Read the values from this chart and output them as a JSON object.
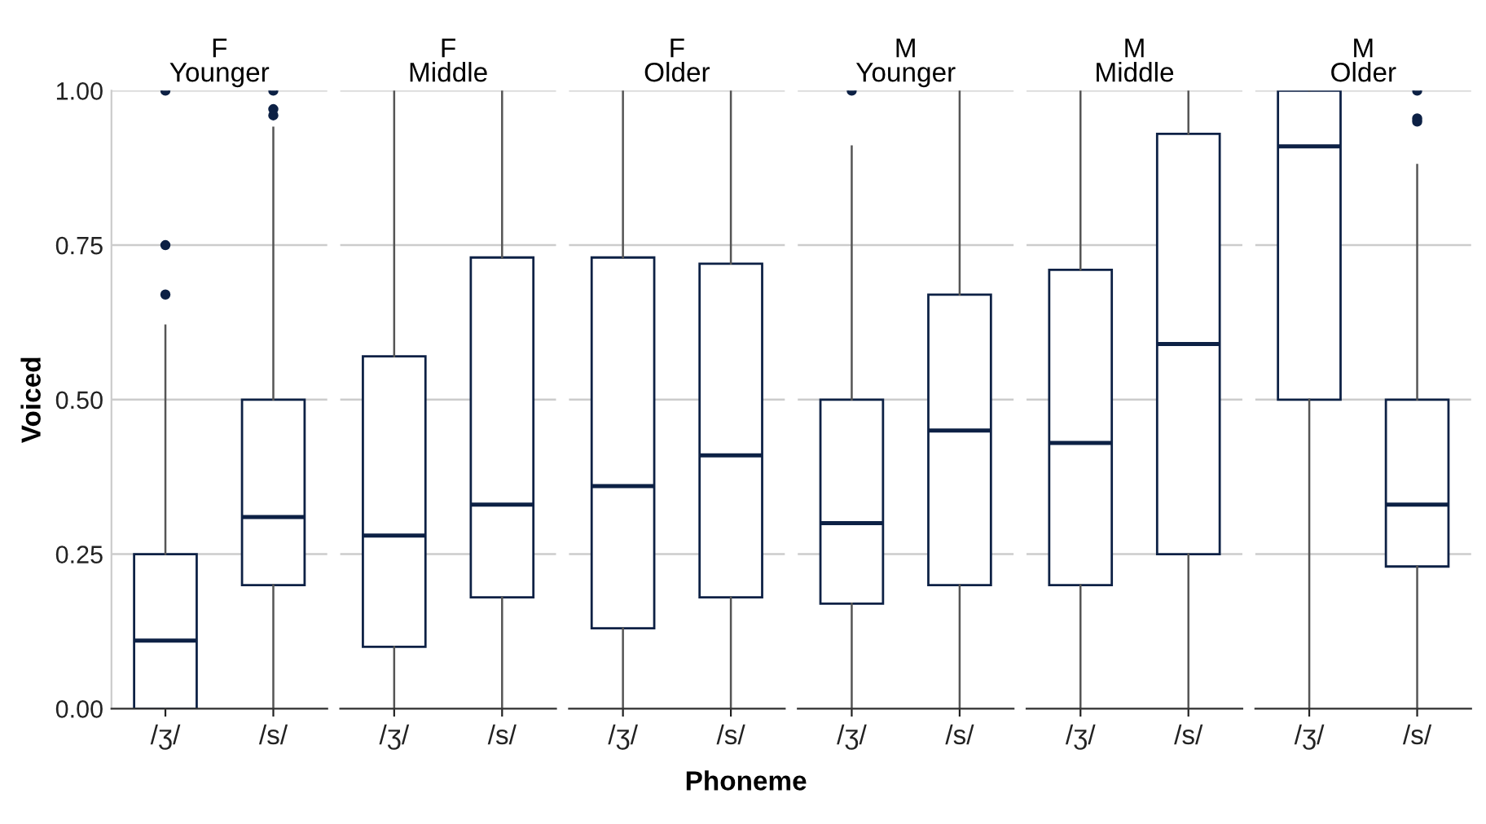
{
  "chart_data": [
    {
      "type": "box",
      "title": "F\nYounger",
      "ylabel": "Voiced",
      "categories": [
        "/ʒ/",
        "/s/"
      ],
      "color": "#0d2145",
      "ylim": [
        0,
        1
      ],
      "yticks": [
        {
          "value": 0,
          "label": "0.00"
        },
        {
          "value": 0.25,
          "label": "0.25"
        },
        {
          "value": 0.5,
          "label": "0.50"
        },
        {
          "value": 0.75,
          "label": "0.75"
        },
        {
          "value": 1,
          "label": "1.00"
        }
      ],
      "grid": "y",
      "boxes": [
        {
          "low": 0,
          "q1": 0,
          "median": 0.11,
          "q3": 0.25,
          "high": 0.62,
          "outliers": [
            0.67,
            0.75,
            1.0
          ]
        },
        {
          "low": 0,
          "q1": 0.2,
          "median": 0.31,
          "q3": 0.5,
          "high": 0.94,
          "outliers": [
            0.96,
            0.97,
            1.0
          ]
        }
      ]
    },
    {
      "type": "box",
      "title": "F\nMiddle",
      "categories": [
        "/ʒ/",
        "/s/"
      ],
      "color": "#0d2145",
      "ylim": [
        0,
        1
      ],
      "yticks": [
        0,
        0.25,
        0.5,
        0.75,
        1
      ],
      "grid": "y",
      "tick_labels": "x",
      "boxes": [
        {
          "low": 0,
          "q1": 0.1,
          "median": 0.28,
          "q3": 0.57,
          "high": 1.0
        },
        {
          "low": 0,
          "q1": 0.18,
          "median": 0.33,
          "q3": 0.73,
          "high": 1.0
        }
      ]
    },
    {
      "type": "box",
      "title": "F\nOlder",
      "xlabel": "Phoneme",
      "categories": [
        "/ʒ/",
        "/s/"
      ],
      "color": "#0d2145",
      "ylim": [
        0,
        1
      ],
      "yticks": [
        0,
        0.25,
        0.5,
        0.75,
        1
      ],
      "grid": "y",
      "tick_labels": "x",
      "boxes": [
        {
          "low": 0,
          "q1": 0.13,
          "median": 0.36,
          "q3": 0.73,
          "high": 1.0
        },
        {
          "low": 0,
          "q1": 0.18,
          "median": 0.41,
          "q3": 0.72,
          "high": 1.0
        }
      ]
    },
    {
      "type": "box",
      "title": "M\nYounger",
      "categories": [
        "/ʒ/",
        "/s/"
      ],
      "color": "#0d2145",
      "ylim": [
        0,
        1
      ],
      "yticks": [
        0,
        0.25,
        0.5,
        0.75,
        1
      ],
      "grid": "y",
      "tick_labels": "x",
      "boxes": [
        {
          "low": 0,
          "q1": 0.17,
          "median": 0.3,
          "q3": 0.5,
          "high": 0.91,
          "outliers": [
            1.0
          ]
        },
        {
          "low": 0,
          "q1": 0.2,
          "median": 0.45,
          "q3": 0.67,
          "high": 1.0
        }
      ]
    },
    {
      "type": "box",
      "title": "M\nMiddle",
      "categories": [
        "/ʒ/",
        "/s/"
      ],
      "color": "#0d2145",
      "ylim": [
        0,
        1
      ],
      "yticks": [
        0,
        0.25,
        0.5,
        0.75,
        1
      ],
      "grid": "y",
      "tick_labels": "x",
      "boxes": [
        {
          "low": 0,
          "q1": 0.2,
          "median": 0.43,
          "q3": 0.71,
          "high": 1.0
        },
        {
          "low": 0,
          "q1": 0.25,
          "median": 0.59,
          "q3": 0.93,
          "high": 1.0
        }
      ]
    },
    {
      "type": "box",
      "title": "M\nOlder",
      "categories": [
        "/ʒ/",
        "/s/"
      ],
      "color": "#0d2145",
      "ylim": [
        0,
        1
      ],
      "yticks": [
        0,
        0.25,
        0.5,
        0.75,
        1
      ],
      "grid": "y",
      "tick_labels": "x",
      "boxes": [
        {
          "low": 0,
          "q1": 0.5,
          "median": 0.91,
          "q3": 1.0,
          "high": 1.0
        },
        {
          "low": 0,
          "q1": 0.23,
          "median": 0.33,
          "q3": 0.5,
          "high": 0.88,
          "outliers": [
            0.95,
            0.955,
            1.0
          ]
        }
      ]
    }
  ]
}
